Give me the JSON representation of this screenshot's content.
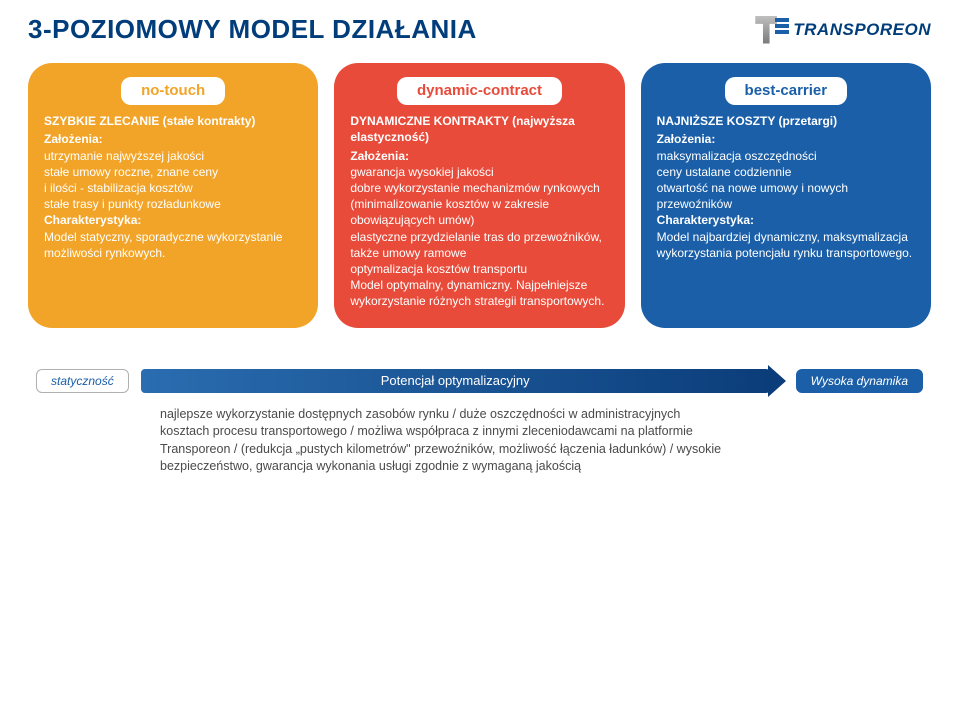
{
  "header": {
    "title": "3-POZIOMOWY  MODEL  DZIAŁANIA",
    "logo_text": "TRANSPOREON"
  },
  "cards": [
    {
      "color": "orange",
      "header": "no-touch",
      "subtitle": "SZYBKIE ZLECANIE (stałe kontrakty)",
      "assumptions_label": "Założenia:",
      "assumptions": [
        " utrzymanie najwyższej jakości",
        " stałe umowy roczne, znane ceny",
        "i ilości - stabilizacja kosztów",
        " stałe trasy i punkty rozładunkowe"
      ],
      "char_label": "Charakterystyka:",
      "char_text": "Model statyczny, sporadyczne wykorzystanie możliwości rynkowych."
    },
    {
      "color": "red",
      "header": "dynamic-contract",
      "subtitle": "DYNAMICZNE KONTRAKTY (najwyższa elastyczność)",
      "assumptions_label": "Założenia:",
      "assumptions": [
        " gwarancja wysokiej jakości",
        " dobre wykorzystanie mechanizmów rynkowych (minimalizowanie kosztów w zakresie obowiązujących umów)",
        " elastyczne przydzielanie tras do przewoźników,",
        "także umowy ramowe",
        " optymalizacja kosztów transportu"
      ],
      "char_label": "",
      "char_text": "Model optymalny, dynamiczny. Najpełniejsze wykorzystanie różnych strategii transportowych."
    },
    {
      "color": "blue",
      "header": "best-carrier",
      "subtitle": "NAJNIŻSZE KOSZTY (przetargi)",
      "assumptions_label": "Założenia:",
      "assumptions": [
        " maksymalizacja oszczędności",
        " ceny ustalane codziennie",
        " otwartość na nowe umowy i nowych przewoźników"
      ],
      "char_label": "Charakterystyka:",
      "char_text": "Model najbardziej dynamiczny, maksymalizacja wykorzystania potencjału rynku transportowego."
    }
  ],
  "bottom": {
    "left_chip": "statyczność",
    "arrow_label": "Potencjał  optymalizacyjny",
    "right_chip": "Wysoka dynamika",
    "benefits": "najlepsze wykorzystanie dostępnych zasobów rynku / duże oszczędności w administracyjnych kosztach procesu transportowego / możliwa współpraca z innymi zleceniodawcami na platformie Transporeon / (redukcja „pustych kilometrów\" przewoźników, możliwość łączenia ładunków) / wysokie bezpieczeństwo, gwarancja wykonania usługi zgodnie z wymaganą jakością"
  }
}
